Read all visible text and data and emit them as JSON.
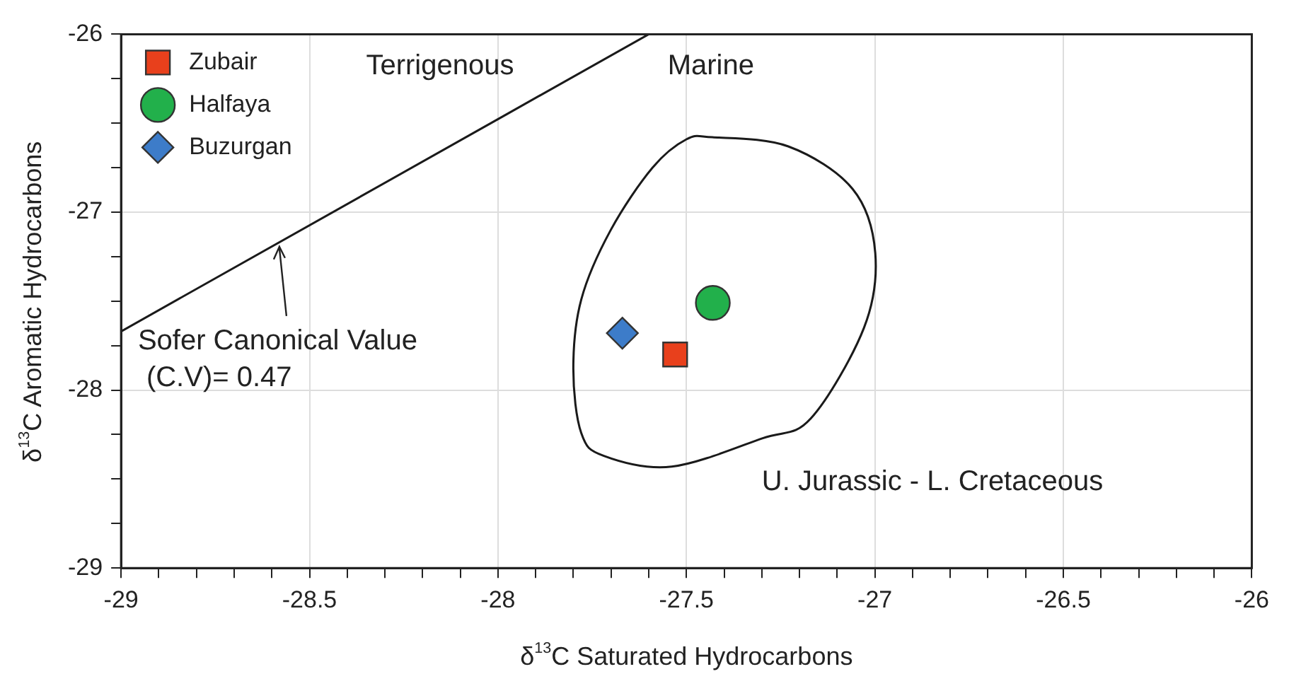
{
  "chart_data": {
    "type": "scatter",
    "xlabel": "δ$^{13}$C Saturated Hydrocarbons",
    "ylabel": "δ$^{13}$C Aromatic Hydrocarbons",
    "xlim": [
      -29,
      -26
    ],
    "ylim": [
      -29,
      -26
    ],
    "xticks": [
      -29,
      {
        "value": -28.9,
        "label": null
      },
      {
        "value": -28.8,
        "label": null
      },
      {
        "value": -28.7,
        "label": null
      },
      {
        "value": -28.6,
        "label": null
      },
      -28.5,
      {
        "value": -28.4,
        "label": null
      },
      {
        "value": -28.3,
        "label": null
      },
      {
        "value": -28.2,
        "label": null
      },
      {
        "value": -28.1,
        "label": null
      },
      -28,
      {
        "value": -27.9,
        "label": null
      },
      {
        "value": -27.8,
        "label": null
      },
      {
        "value": -27.7,
        "label": null
      },
      {
        "value": -27.6,
        "label": null
      },
      -27.5,
      {
        "value": -27.4,
        "label": null
      },
      {
        "value": -27.3,
        "label": null
      },
      {
        "value": -27.2,
        "label": null
      },
      {
        "value": -27.1,
        "label": null
      },
      -27,
      {
        "value": -26.9,
        "label": null
      },
      {
        "value": -26.8,
        "label": null
      },
      {
        "value": -26.7,
        "label": null
      },
      {
        "value": -26.6,
        "label": null
      },
      -26.5,
      {
        "value": -26.4,
        "label": null
      },
      {
        "value": -26.3,
        "label": null
      },
      {
        "value": -26.2,
        "label": null
      },
      {
        "value": -26.1,
        "label": null
      },
      -26
    ],
    "yticks": [
      -29,
      {
        "value": -28.75,
        "label": null
      },
      {
        "value": -28.5,
        "label": null
      },
      {
        "value": -28.25,
        "label": null
      },
      -28,
      {
        "value": -27.75,
        "label": null
      },
      {
        "value": -27.5,
        "label": null
      },
      {
        "value": -27.25,
        "label": null
      },
      -27,
      {
        "value": -26.75,
        "label": null
      },
      {
        "value": -26.5,
        "label": null
      },
      {
        "value": -26.25,
        "label": null
      },
      -26
    ],
    "grid": true,
    "legend": "top left",
    "series": [
      {
        "name": "Zubair",
        "color": "#e8401c",
        "marker": "square",
        "x": [
          -27.53
        ],
        "values": [
          -27.8
        ]
      },
      {
        "name": "Halfaya",
        "color": "#22b04b",
        "marker": "circle",
        "x": [
          -27.43
        ],
        "values": [
          -27.51
        ]
      },
      {
        "name": "Buzurgan",
        "color": "#3d7cc9",
        "marker": "diamond",
        "x": [
          -27.67
        ],
        "values": [
          -27.68
        ]
      },
      {
        "type": "line",
        "color": "#1a1a1a",
        "marker": "none",
        "x": [
          -29,
          -27.6
        ],
        "values": [
          -27.67,
          -26
        ]
      }
    ],
    "annotations": [
      "Terrigenous",
      "Marine",
      {
        "text": "Sofer Canonical Value\n(C.V)= 0.47",
        "x": -28.58,
        "y": -27.17
      },
      "U. Jurassic - L. Cretaceous"
    ]
  }
}
